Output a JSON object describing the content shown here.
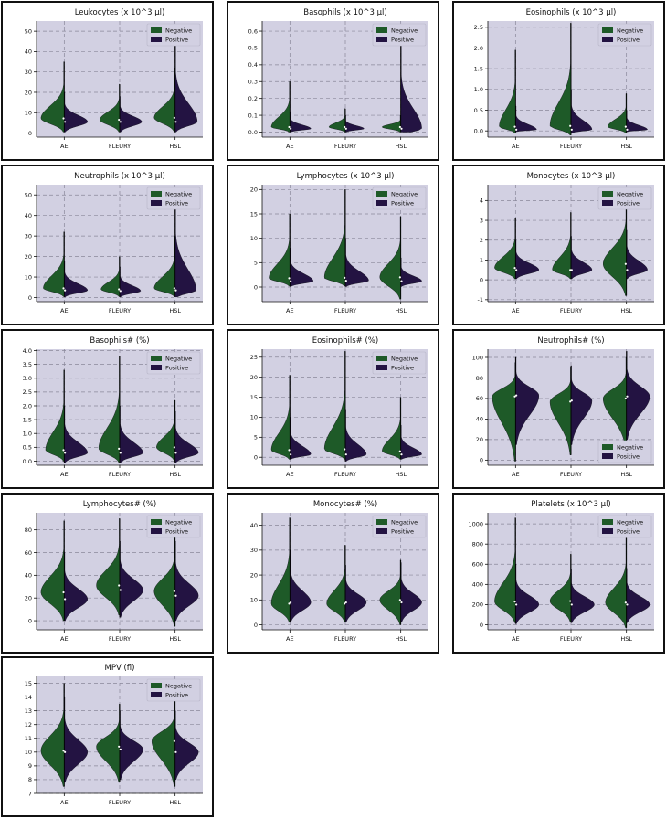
{
  "colors": {
    "negative": "#1e5a28",
    "positive": "#231342",
    "plot_bg": "#d2d0e2",
    "grid": "#8a889a"
  },
  "chart_data": [
    {
      "type": "violin",
      "title": "Leukocytes  (x 10^3 µl)",
      "categories": [
        "AE",
        "FLEURY",
        "HSL"
      ],
      "legend": {
        "labels": [
          "Negative",
          "Positive"
        ],
        "position": "upper-right"
      },
      "ylim": [
        -2,
        55
      ],
      "yticks": [
        0,
        10,
        20,
        30,
        40,
        50
      ],
      "grid": true,
      "series": [
        {
          "name": "Negative",
          "median": [
            7.2,
            6.5,
            7.5
          ],
          "max": [
            35,
            24,
            32
          ],
          "min": [
            0.5,
            0.5,
            0.5
          ],
          "width": [
            1.0,
            0.85,
            0.9
          ]
        },
        {
          "name": "Positive",
          "median": [
            5.5,
            5.5,
            5.5
          ],
          "max": [
            20,
            18,
            46
          ],
          "min": [
            0.5,
            0.5,
            0.5
          ],
          "width": [
            1.0,
            0.95,
            0.95
          ]
        }
      ]
    },
    {
      "type": "violin",
      "title": "Basophils  (x 10^3 µl)",
      "categories": [
        "AE",
        "FLEURY",
        "HSL"
      ],
      "legend": {
        "labels": [
          "Negative",
          "Positive"
        ],
        "position": "upper-right"
      },
      "ylim": [
        -0.03,
        0.66
      ],
      "yticks": [
        0.0,
        0.1,
        0.2,
        0.3,
        0.4,
        0.5,
        0.6
      ],
      "grid": true,
      "series": [
        {
          "name": "Negative",
          "median": [
            0.03,
            0.03,
            0.03
          ],
          "max": [
            0.3,
            0.14,
            0.1
          ],
          "min": [
            0.0,
            0.0,
            0.0
          ],
          "width": [
            0.8,
            0.7,
            0.8
          ]
        },
        {
          "name": "Positive",
          "median": [
            0.02,
            0.02,
            0.02
          ],
          "max": [
            0.12,
            0.1,
            0.55
          ],
          "min": [
            0.0,
            0.0,
            0.0
          ],
          "width": [
            0.9,
            0.8,
            0.9
          ]
        }
      ]
    },
    {
      "type": "violin",
      "title": "Eosinophils  (x 10^3 µl)",
      "categories": [
        "AE",
        "FLEURY",
        "HSL"
      ],
      "legend": {
        "labels": [
          "Negative",
          "Positive"
        ],
        "position": "upper-right"
      },
      "ylim": [
        -0.15,
        2.65
      ],
      "yticks": [
        0.0,
        0.5,
        1.0,
        1.5,
        2.0,
        2.5
      ],
      "grid": true,
      "series": [
        {
          "name": "Negative",
          "median": [
            0.1,
            0.12,
            0.1
          ],
          "max": [
            1.95,
            2.6,
            0.9
          ],
          "min": [
            -0.05,
            -0.1,
            -0.05
          ],
          "width": [
            0.7,
            0.9,
            0.8
          ]
        },
        {
          "name": "Positive",
          "median": [
            0.03,
            0.03,
            0.03
          ],
          "max": [
            0.6,
            1.0,
            0.5
          ],
          "min": [
            -0.02,
            -0.05,
            -0.02
          ],
          "width": [
            0.9,
            0.9,
            0.9
          ]
        }
      ]
    },
    {
      "type": "violin",
      "title": "Neutrophils  (x 10^3 µl)",
      "categories": [
        "AE",
        "FLEURY",
        "HSL"
      ],
      "legend": {
        "labels": [
          "Negative",
          "Positive"
        ],
        "position": "upper-right"
      },
      "ylim": [
        -2,
        55
      ],
      "yticks": [
        0,
        10,
        20,
        30,
        40,
        50
      ],
      "grid": true,
      "series": [
        {
          "name": "Negative",
          "median": [
            4.5,
            4.0,
            4.5
          ],
          "max": [
            32,
            20,
            30
          ],
          "min": [
            0.5,
            0.5,
            0.5
          ],
          "width": [
            0.9,
            0.8,
            0.9
          ]
        },
        {
          "name": "Positive",
          "median": [
            3.5,
            3.2,
            3.5
          ],
          "max": [
            18,
            15,
            50
          ],
          "min": [
            0.3,
            0.3,
            0.3
          ],
          "width": [
            1.0,
            0.9,
            0.9
          ]
        }
      ]
    },
    {
      "type": "violin",
      "title": "Lymphocytes  (x 10^3 µl)",
      "categories": [
        "AE",
        "FLEURY",
        "HSL"
      ],
      "legend": {
        "labels": [
          "Negative",
          "Positive"
        ],
        "position": "upper-right"
      },
      "ylim": [
        -3,
        21
      ],
      "yticks": [
        0,
        5,
        10,
        15,
        20
      ],
      "grid": true,
      "series": [
        {
          "name": "Negative",
          "median": [
            1.8,
            1.9,
            2.0
          ],
          "max": [
            15,
            20,
            14.5
          ],
          "min": [
            0.2,
            0.2,
            -2.5
          ],
          "width": [
            0.9,
            0.9,
            0.9
          ]
        },
        {
          "name": "Positive",
          "median": [
            1.2,
            1.3,
            1.2
          ],
          "max": [
            8,
            10,
            6
          ],
          "min": [
            0.1,
            0.1,
            0.1
          ],
          "width": [
            1.0,
            1.0,
            0.9
          ]
        }
      ]
    },
    {
      "type": "violin",
      "title": "Monocytes  (x 10^3 µl)",
      "categories": [
        "AE",
        "FLEURY",
        "HSL"
      ],
      "legend": {
        "labels": [
          "Negative",
          "Positive"
        ],
        "position": "upper-right"
      },
      "ylim": [
        -1.1,
        4.8
      ],
      "yticks": [
        -1,
        0,
        1,
        2,
        3,
        4
      ],
      "grid": true,
      "series": [
        {
          "name": "Negative",
          "median": [
            0.6,
            0.5,
            0.8
          ],
          "max": [
            3.1,
            3.4,
            4.4
          ],
          "min": [
            0.05,
            0.05,
            -0.8
          ],
          "width": [
            0.9,
            0.8,
            1.0
          ]
        },
        {
          "name": "Positive",
          "median": [
            0.5,
            0.5,
            0.5
          ],
          "max": [
            2.0,
            2.2,
            2.5
          ],
          "min": [
            0.05,
            0.05,
            0.05
          ],
          "width": [
            1.0,
            0.9,
            0.9
          ]
        }
      ]
    },
    {
      "type": "violin",
      "title": "Basophils# (%)",
      "categories": [
        "AE",
        "FLEURY",
        "HSL"
      ],
      "legend": {
        "labels": [
          "Negative",
          "Positive"
        ],
        "position": "upper-right"
      },
      "ylim": [
        -0.15,
        4.05
      ],
      "yticks": [
        0.0,
        0.5,
        1.0,
        1.5,
        2.0,
        2.5,
        3.0,
        3.5,
        4.0
      ],
      "grid": true,
      "series": [
        {
          "name": "Negative",
          "median": [
            0.4,
            0.45,
            0.5
          ],
          "max": [
            3.3,
            3.8,
            2.2
          ],
          "min": [
            0.0,
            -0.05,
            0.0
          ],
          "width": [
            0.8,
            0.9,
            0.8
          ]
        },
        {
          "name": "Positive",
          "median": [
            0.3,
            0.3,
            0.3
          ],
          "max": [
            2.0,
            2.0,
            1.8
          ],
          "min": [
            -0.05,
            -0.05,
            -0.05
          ],
          "width": [
            1.0,
            1.0,
            1.0
          ]
        }
      ]
    },
    {
      "type": "violin",
      "title": "Eosinophils# (%)",
      "categories": [
        "AE",
        "FLEURY",
        "HSL"
      ],
      "legend": {
        "labels": [
          "Negative",
          "Positive"
        ],
        "position": "upper-right"
      },
      "ylim": [
        -2,
        27
      ],
      "yticks": [
        0,
        5,
        10,
        15,
        20,
        25
      ],
      "grid": true,
      "series": [
        {
          "name": "Negative",
          "median": [
            1.8,
            2.0,
            1.5
          ],
          "max": [
            20.5,
            26.5,
            15
          ],
          "min": [
            -0.5,
            -0.5,
            -0.5
          ],
          "width": [
            0.8,
            0.9,
            0.8
          ]
        },
        {
          "name": "Positive",
          "median": [
            0.7,
            0.7,
            0.7
          ],
          "max": [
            10,
            12,
            8
          ],
          "min": [
            -0.5,
            -1.0,
            -0.5
          ],
          "width": [
            0.9,
            0.9,
            0.9
          ]
        }
      ]
    },
    {
      "type": "violin",
      "title": "Neutrophils# (%)",
      "categories": [
        "AE",
        "FLEURY",
        "HSL"
      ],
      "legend": {
        "labels": [
          "Negative",
          "Positive"
        ],
        "position": "lower-right"
      },
      "ylim": [
        -5,
        108
      ],
      "yticks": [
        0,
        20,
        40,
        60,
        80,
        100
      ],
      "grid": true,
      "series": [
        {
          "name": "Negative",
          "median": [
            62,
            57,
            60
          ],
          "max": [
            95,
            90,
            100
          ],
          "min": [
            -1,
            5,
            12
          ],
          "width": [
            1.0,
            0.9,
            1.0
          ]
        },
        {
          "name": "Positive",
          "median": [
            63,
            58,
            62
          ],
          "max": [
            100,
            92,
            106
          ],
          "min": [
            15,
            15,
            20
          ],
          "width": [
            1.0,
            0.9,
            1.0
          ]
        }
      ]
    },
    {
      "type": "violin",
      "title": "Lymphocytes# (%)",
      "categories": [
        "AE",
        "FLEURY",
        "HSL"
      ],
      "legend": {
        "labels": [
          "Negative",
          "Positive"
        ],
        "position": "upper-right"
      },
      "ylim": [
        -8,
        95
      ],
      "yticks": [
        0,
        20,
        40,
        60,
        80
      ],
      "grid": true,
      "series": [
        {
          "name": "Negative",
          "median": [
            25,
            31,
            26
          ],
          "max": [
            88,
            90,
            76
          ],
          "min": [
            0,
            5,
            -5
          ],
          "width": [
            1.0,
            1.0,
            0.9
          ]
        },
        {
          "name": "Positive",
          "median": [
            19,
            27,
            22
          ],
          "max": [
            60,
            70,
            70
          ],
          "min": [
            0,
            3,
            0
          ],
          "width": [
            1.0,
            1.0,
            1.0
          ]
        }
      ]
    },
    {
      "type": "violin",
      "title": "Monocytes# (%)",
      "categories": [
        "AE",
        "FLEURY",
        "HSL"
      ],
      "legend": {
        "labels": [
          "Negative",
          "Positive"
        ],
        "position": "upper-right"
      },
      "ylim": [
        -2,
        45
      ],
      "yticks": [
        0,
        10,
        20,
        30,
        40
      ],
      "grid": true,
      "series": [
        {
          "name": "Negative",
          "median": [
            8.5,
            8.5,
            10
          ],
          "max": [
            43,
            32,
            26
          ],
          "min": [
            1,
            1,
            0
          ],
          "width": [
            0.8,
            0.8,
            0.9
          ]
        },
        {
          "name": "Positive",
          "median": [
            9,
            9,
            9
          ],
          "max": [
            30,
            24,
            25
          ],
          "min": [
            1,
            1,
            1
          ],
          "width": [
            0.9,
            0.9,
            0.9
          ]
        }
      ]
    },
    {
      "type": "violin",
      "title": "Platelets  (x 10^3 µl)",
      "categories": [
        "AE",
        "FLEURY",
        "HSL"
      ],
      "legend": {
        "labels": [
          "Negative",
          "Positive"
        ],
        "position": "upper-right"
      },
      "ylim": [
        -50,
        1110
      ],
      "yticks": [
        0,
        200,
        400,
        600,
        800,
        1000
      ],
      "grid": true,
      "series": [
        {
          "name": "Negative",
          "median": [
            230,
            235,
            220
          ],
          "max": [
            1060,
            700,
            860
          ],
          "min": [
            20,
            30,
            -30
          ],
          "width": [
            0.9,
            0.9,
            0.9
          ]
        },
        {
          "name": "Positive",
          "median": [
            200,
            200,
            200
          ],
          "max": [
            600,
            550,
            560
          ],
          "min": [
            10,
            20,
            20
          ],
          "width": [
            1.0,
            1.0,
            1.0
          ]
        }
      ]
    },
    {
      "type": "violin",
      "title": "MPV (fl)",
      "categories": [
        "AE",
        "FLEURY",
        "HSL"
      ],
      "legend": {
        "labels": [
          "Negative",
          "Positive"
        ],
        "position": "upper-right"
      },
      "ylim": [
        7,
        15.5
      ],
      "yticks": [
        7,
        8,
        9,
        10,
        11,
        12,
        13,
        14,
        15
      ],
      "grid": true,
      "series": [
        {
          "name": "Negative",
          "median": [
            10.1,
            10.4,
            10.8
          ],
          "max": [
            15,
            13.5,
            13.8
          ],
          "min": [
            7.5,
            7.8,
            7.5
          ],
          "width": [
            1.0,
            1.0,
            1.0
          ]
        },
        {
          "name": "Positive",
          "median": [
            10.0,
            10.2,
            10.0
          ],
          "max": [
            14,
            13,
            13
          ],
          "min": [
            7.8,
            8,
            8
          ],
          "width": [
            1.0,
            1.0,
            1.0
          ]
        }
      ]
    }
  ]
}
